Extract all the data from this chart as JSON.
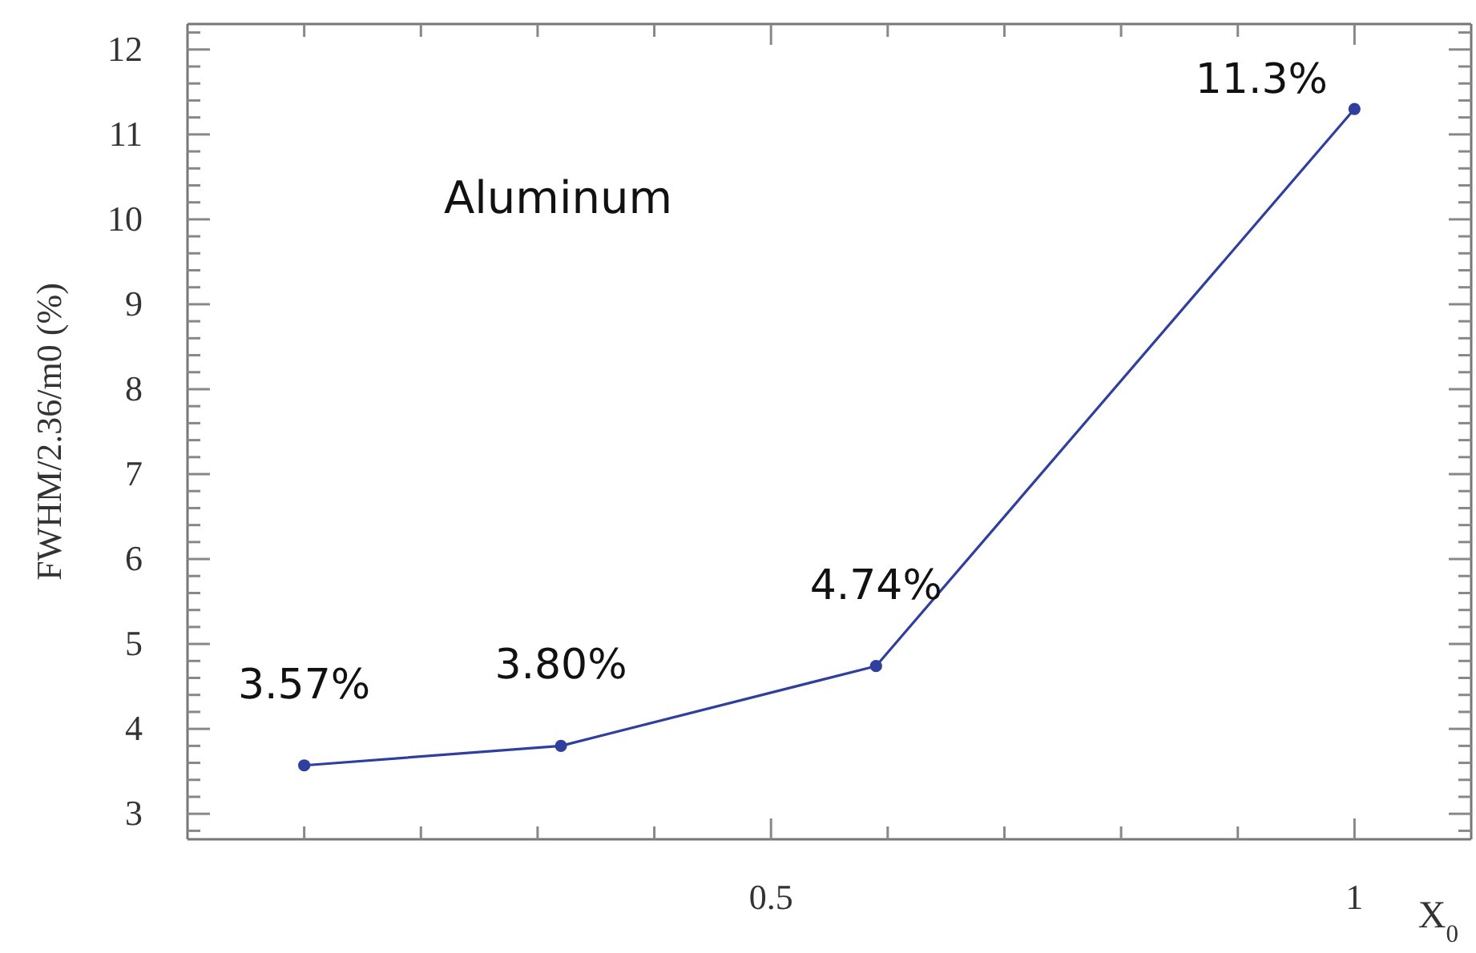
{
  "chart_data": {
    "type": "line",
    "ylabel": "FWHM/2.36/m0 (%)",
    "xlabel": "X$_{0}$",
    "annotations": [
      "Aluminum"
    ],
    "x": [
      0.1,
      0.32,
      0.59,
      1
    ],
    "series": [
      {
        "color": "#2f3f9e",
        "values": [
          3.57,
          3.8,
          4.74,
          11.3
        ],
        "value_labels": [
          "3.57%",
          "3.80%",
          "4.74%",
          "11.3%"
        ]
      }
    ],
    "xlim": [
      0,
      1.1
    ],
    "xticks": [
      {
        "value": 0.1,
        "label": null
      },
      {
        "value": 0.2,
        "label": null
      },
      {
        "value": 0.3,
        "label": null
      },
      {
        "value": 0.4,
        "label": null
      },
      {
        "value": 0.5,
        "label": "0.5"
      },
      {
        "value": 0.6,
        "label": null
      },
      {
        "value": 0.7,
        "label": null
      },
      {
        "value": 0.8,
        "label": null
      },
      {
        "value": 0.9,
        "label": null
      },
      {
        "value": 1,
        "label": "1"
      }
    ],
    "ylim": [
      2.7,
      12.3
    ],
    "yticks": [
      {
        "value": 2.8,
        "label": null
      },
      3,
      {
        "value": 3.2,
        "label": null
      },
      {
        "value": 3.4,
        "label": null
      },
      {
        "value": 3.6,
        "label": null
      },
      {
        "value": 3.8,
        "label": null
      },
      4,
      {
        "value": 4.2,
        "label": null
      },
      {
        "value": 4.4,
        "label": null
      },
      {
        "value": 4.6,
        "label": null
      },
      {
        "value": 4.8,
        "label": null
      },
      5,
      {
        "value": 5.2,
        "label": null
      },
      {
        "value": 5.4,
        "label": null
      },
      {
        "value": 5.6,
        "label": null
      },
      {
        "value": 5.8,
        "label": null
      },
      6,
      {
        "value": 6.2,
        "label": null
      },
      {
        "value": 6.4,
        "label": null
      },
      {
        "value": 6.6,
        "label": null
      },
      {
        "value": 6.8,
        "label": null
      },
      7,
      {
        "value": 7.2,
        "label": null
      },
      {
        "value": 7.4,
        "label": null
      },
      {
        "value": 7.6,
        "label": null
      },
      {
        "value": 7.8,
        "label": null
      },
      8,
      {
        "value": 8.2,
        "label": null
      },
      {
        "value": 8.4,
        "label": null
      },
      {
        "value": 8.6,
        "label": null
      },
      {
        "value": 8.8,
        "label": null
      },
      9,
      {
        "value": 9.2,
        "label": null
      },
      {
        "value": 9.4,
        "label": null
      },
      {
        "value": 9.6,
        "label": null
      },
      {
        "value": 9.8,
        "label": null
      },
      10,
      {
        "value": 10.2,
        "label": null
      },
      {
        "value": 10.4,
        "label": null
      },
      {
        "value": 10.6,
        "label": null
      },
      {
        "value": 10.8,
        "label": null
      },
      11,
      {
        "value": 11.2,
        "label": null
      },
      {
        "value": 11.4,
        "label": null
      },
      {
        "value": 11.6,
        "label": null
      },
      {
        "value": 11.8,
        "label": null
      },
      12,
      {
        "value": 12.2,
        "label": null
      }
    ],
    "grid": false,
    "marker": "circle",
    "line_style": "solid"
  }
}
